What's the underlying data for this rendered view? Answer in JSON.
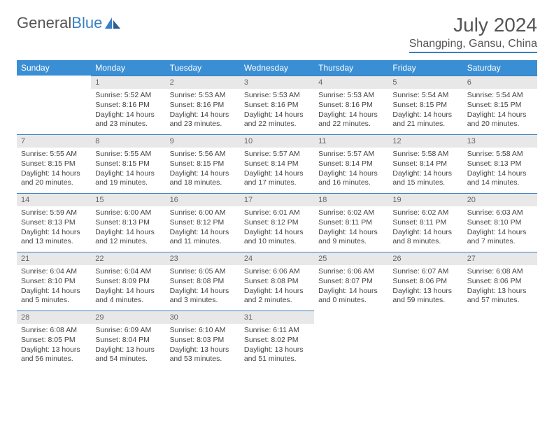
{
  "brand": {
    "name_a": "General",
    "name_b": "Blue"
  },
  "title": "July 2024",
  "location": "Shangping, Gansu, China",
  "colors": {
    "header_bg": "#3a8fd4",
    "accent": "#3a7fc4",
    "daynum_bg": "#e8e8e8",
    "text": "#444"
  },
  "weekdays": [
    "Sunday",
    "Monday",
    "Tuesday",
    "Wednesday",
    "Thursday",
    "Friday",
    "Saturday"
  ],
  "first_weekday_index": 1,
  "days": [
    {
      "n": 1,
      "sunrise": "5:52 AM",
      "sunset": "8:16 PM",
      "daylight": "14 hours and 23 minutes."
    },
    {
      "n": 2,
      "sunrise": "5:53 AM",
      "sunset": "8:16 PM",
      "daylight": "14 hours and 23 minutes."
    },
    {
      "n": 3,
      "sunrise": "5:53 AM",
      "sunset": "8:16 PM",
      "daylight": "14 hours and 22 minutes."
    },
    {
      "n": 4,
      "sunrise": "5:53 AM",
      "sunset": "8:16 PM",
      "daylight": "14 hours and 22 minutes."
    },
    {
      "n": 5,
      "sunrise": "5:54 AM",
      "sunset": "8:15 PM",
      "daylight": "14 hours and 21 minutes."
    },
    {
      "n": 6,
      "sunrise": "5:54 AM",
      "sunset": "8:15 PM",
      "daylight": "14 hours and 20 minutes."
    },
    {
      "n": 7,
      "sunrise": "5:55 AM",
      "sunset": "8:15 PM",
      "daylight": "14 hours and 20 minutes."
    },
    {
      "n": 8,
      "sunrise": "5:55 AM",
      "sunset": "8:15 PM",
      "daylight": "14 hours and 19 minutes."
    },
    {
      "n": 9,
      "sunrise": "5:56 AM",
      "sunset": "8:15 PM",
      "daylight": "14 hours and 18 minutes."
    },
    {
      "n": 10,
      "sunrise": "5:57 AM",
      "sunset": "8:14 PM",
      "daylight": "14 hours and 17 minutes."
    },
    {
      "n": 11,
      "sunrise": "5:57 AM",
      "sunset": "8:14 PM",
      "daylight": "14 hours and 16 minutes."
    },
    {
      "n": 12,
      "sunrise": "5:58 AM",
      "sunset": "8:14 PM",
      "daylight": "14 hours and 15 minutes."
    },
    {
      "n": 13,
      "sunrise": "5:58 AM",
      "sunset": "8:13 PM",
      "daylight": "14 hours and 14 minutes."
    },
    {
      "n": 14,
      "sunrise": "5:59 AM",
      "sunset": "8:13 PM",
      "daylight": "14 hours and 13 minutes."
    },
    {
      "n": 15,
      "sunrise": "6:00 AM",
      "sunset": "8:13 PM",
      "daylight": "14 hours and 12 minutes."
    },
    {
      "n": 16,
      "sunrise": "6:00 AM",
      "sunset": "8:12 PM",
      "daylight": "14 hours and 11 minutes."
    },
    {
      "n": 17,
      "sunrise": "6:01 AM",
      "sunset": "8:12 PM",
      "daylight": "14 hours and 10 minutes."
    },
    {
      "n": 18,
      "sunrise": "6:02 AM",
      "sunset": "8:11 PM",
      "daylight": "14 hours and 9 minutes."
    },
    {
      "n": 19,
      "sunrise": "6:02 AM",
      "sunset": "8:11 PM",
      "daylight": "14 hours and 8 minutes."
    },
    {
      "n": 20,
      "sunrise": "6:03 AM",
      "sunset": "8:10 PM",
      "daylight": "14 hours and 7 minutes."
    },
    {
      "n": 21,
      "sunrise": "6:04 AM",
      "sunset": "8:10 PM",
      "daylight": "14 hours and 5 minutes."
    },
    {
      "n": 22,
      "sunrise": "6:04 AM",
      "sunset": "8:09 PM",
      "daylight": "14 hours and 4 minutes."
    },
    {
      "n": 23,
      "sunrise": "6:05 AM",
      "sunset": "8:08 PM",
      "daylight": "14 hours and 3 minutes."
    },
    {
      "n": 24,
      "sunrise": "6:06 AM",
      "sunset": "8:08 PM",
      "daylight": "14 hours and 2 minutes."
    },
    {
      "n": 25,
      "sunrise": "6:06 AM",
      "sunset": "8:07 PM",
      "daylight": "14 hours and 0 minutes."
    },
    {
      "n": 26,
      "sunrise": "6:07 AM",
      "sunset": "8:06 PM",
      "daylight": "13 hours and 59 minutes."
    },
    {
      "n": 27,
      "sunrise": "6:08 AM",
      "sunset": "8:06 PM",
      "daylight": "13 hours and 57 minutes."
    },
    {
      "n": 28,
      "sunrise": "6:08 AM",
      "sunset": "8:05 PM",
      "daylight": "13 hours and 56 minutes."
    },
    {
      "n": 29,
      "sunrise": "6:09 AM",
      "sunset": "8:04 PM",
      "daylight": "13 hours and 54 minutes."
    },
    {
      "n": 30,
      "sunrise": "6:10 AM",
      "sunset": "8:03 PM",
      "daylight": "13 hours and 53 minutes."
    },
    {
      "n": 31,
      "sunrise": "6:11 AM",
      "sunset": "8:02 PM",
      "daylight": "13 hours and 51 minutes."
    }
  ],
  "labels": {
    "sunrise": "Sunrise:",
    "sunset": "Sunset:",
    "daylight": "Daylight:"
  }
}
